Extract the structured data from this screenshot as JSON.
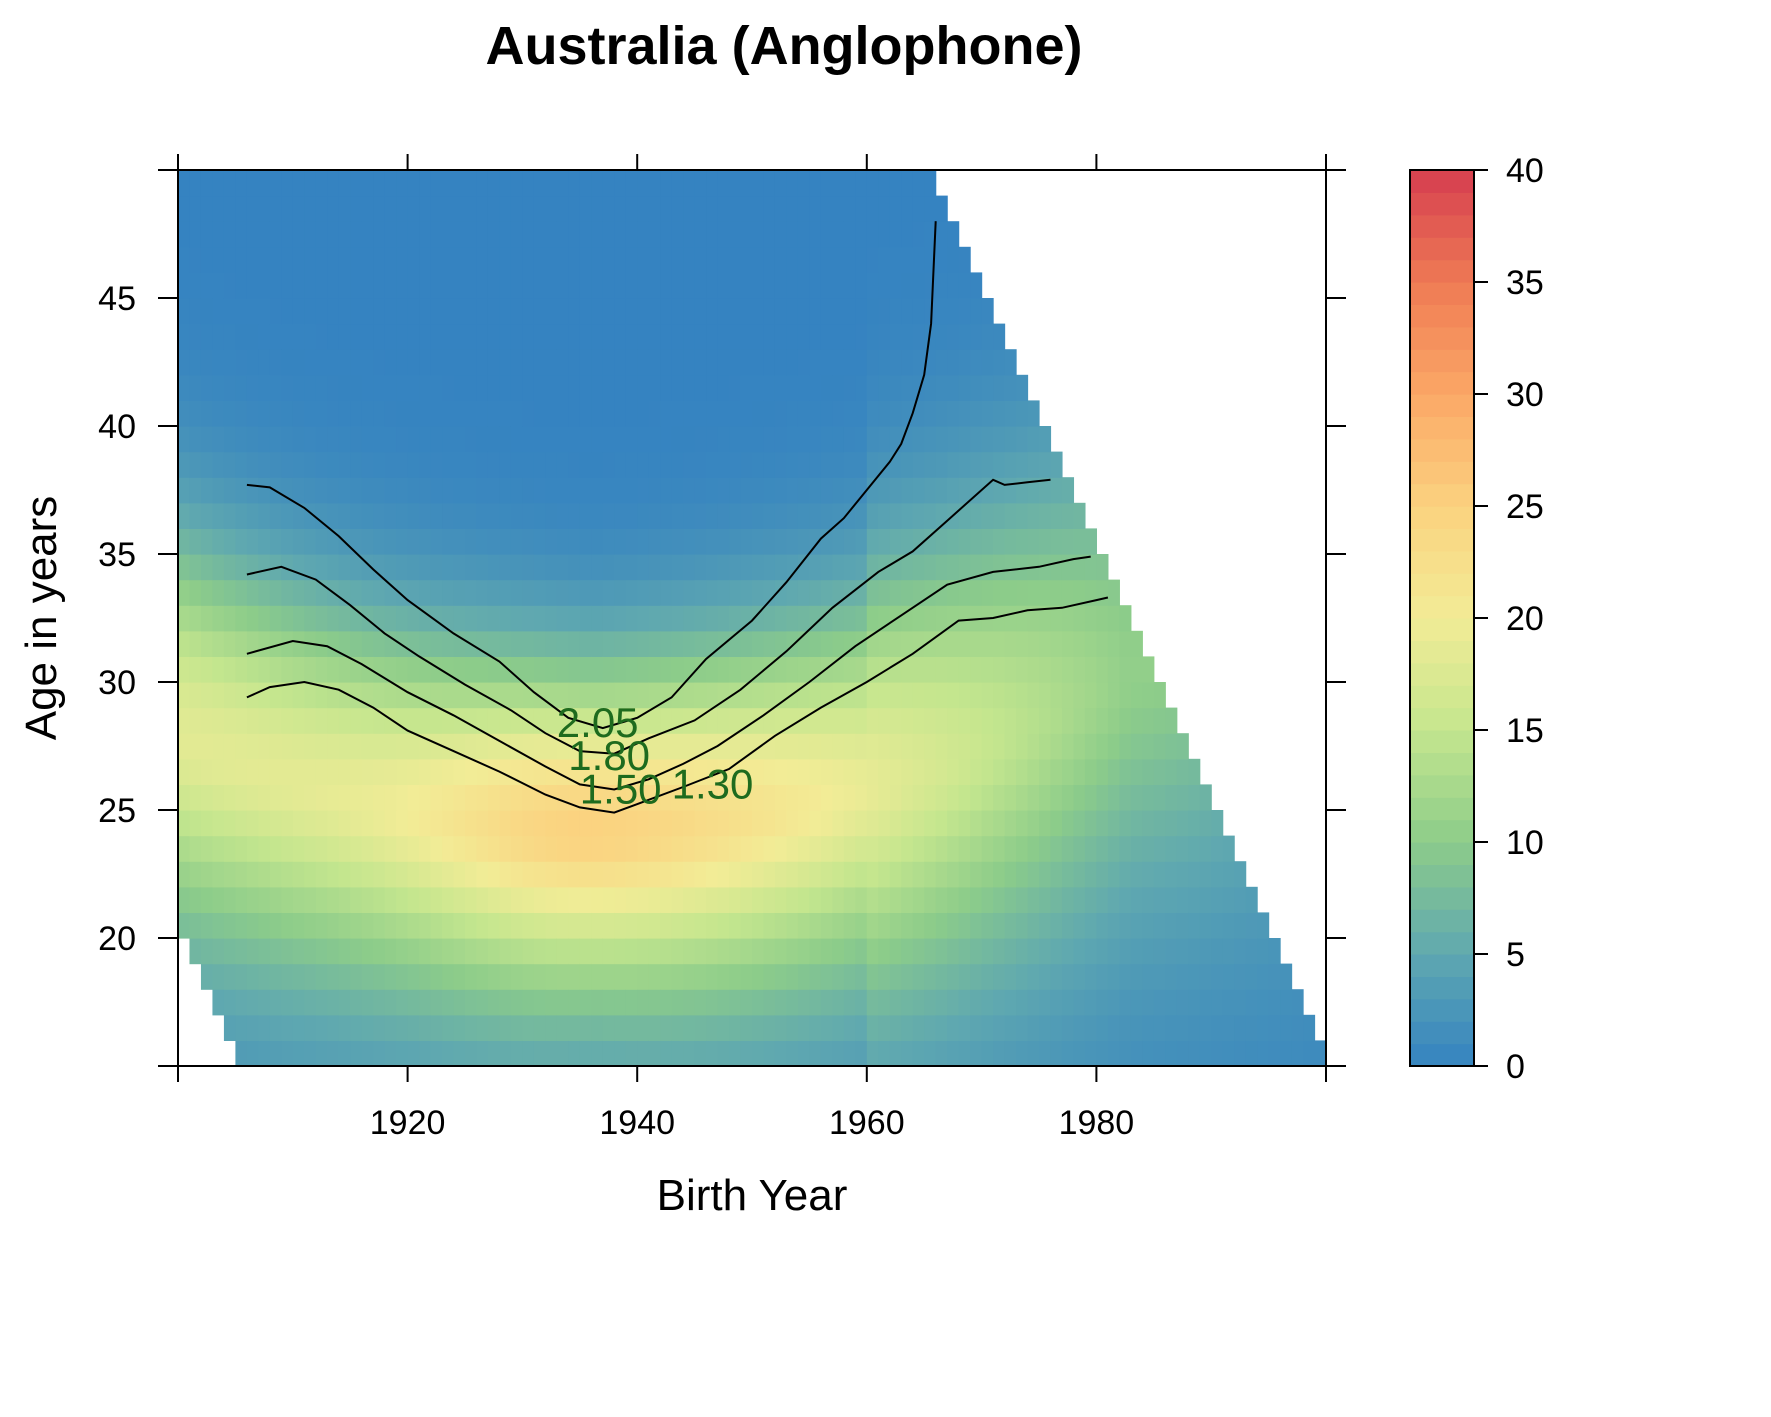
{
  "chart_data": {
    "type": "heatmap",
    "title": "Australia (Anglophone)",
    "xlabel": "Birth Year",
    "ylabel": "Age in years",
    "xlim": [
      1900,
      2000
    ],
    "ylim": [
      15,
      50
    ],
    "x_ticks": [
      1920,
      1940,
      1960,
      1980
    ],
    "y_ticks": [
      20,
      25,
      30,
      35,
      40,
      45
    ],
    "colorbar": {
      "range": [
        0,
        40
      ],
      "ticks": [
        0,
        5,
        10,
        15,
        20,
        25,
        30,
        35,
        40
      ],
      "colors": [
        "#3583c1",
        "#5fa8b0",
        "#8ccc8a",
        "#c4e68e",
        "#f2ec96",
        "#fbd27f",
        "#fba866",
        "#ef7a54",
        "#d53e4f"
      ]
    },
    "heat_peak": {
      "x": 1936,
      "y": 24,
      "value": 25
    },
    "contours": [
      {
        "label": "2.05",
        "points": [
          [
            1906,
            37.7
          ],
          [
            1908,
            37.6
          ],
          [
            1911,
            36.8
          ],
          [
            1914,
            35.7
          ],
          [
            1917,
            34.4
          ],
          [
            1920,
            33.2
          ],
          [
            1924,
            31.9
          ],
          [
            1928,
            30.8
          ],
          [
            1931,
            29.6
          ],
          [
            1934,
            28.6
          ],
          [
            1937,
            28.2
          ],
          [
            1940,
            28.6
          ],
          [
            1943,
            29.4
          ],
          [
            1946,
            30.9
          ],
          [
            1950,
            32.4
          ],
          [
            1953,
            33.9
          ],
          [
            1956,
            35.6
          ],
          [
            1958,
            36.4
          ],
          [
            1960,
            37.5
          ],
          [
            1962,
            38.6
          ],
          [
            1963,
            39.3
          ],
          [
            1964,
            40.5
          ],
          [
            1965,
            42.0
          ],
          [
            1965.6,
            44.0
          ],
          [
            1966,
            48.0
          ]
        ],
        "label_pos": [
          1933,
          28.4
        ]
      },
      {
        "label": "1.80",
        "points": [
          [
            1906,
            34.2
          ],
          [
            1909,
            34.5
          ],
          [
            1912,
            34.0
          ],
          [
            1915,
            33.0
          ],
          [
            1918,
            31.9
          ],
          [
            1921,
            31.0
          ],
          [
            1925,
            29.9
          ],
          [
            1929,
            28.9
          ],
          [
            1932,
            28.0
          ],
          [
            1935,
            27.3
          ],
          [
            1938,
            27.2
          ],
          [
            1941,
            27.8
          ],
          [
            1945,
            28.5
          ],
          [
            1949,
            29.7
          ],
          [
            1953,
            31.2
          ],
          [
            1957,
            32.9
          ],
          [
            1961,
            34.3
          ],
          [
            1964,
            35.1
          ],
          [
            1967,
            36.3
          ],
          [
            1971,
            37.9
          ],
          [
            1972,
            37.7
          ],
          [
            1974,
            37.8
          ],
          [
            1976,
            37.9
          ]
        ],
        "label_pos": [
          1934,
          27.1
        ]
      },
      {
        "label": "1.50",
        "points": [
          [
            1906,
            31.1
          ],
          [
            1910,
            31.6
          ],
          [
            1913,
            31.4
          ],
          [
            1916,
            30.7
          ],
          [
            1920,
            29.6
          ],
          [
            1924,
            28.7
          ],
          [
            1928,
            27.7
          ],
          [
            1932,
            26.7
          ],
          [
            1935,
            26.0
          ],
          [
            1938,
            25.8
          ],
          [
            1941,
            26.2
          ],
          [
            1944,
            26.8
          ],
          [
            1947,
            27.5
          ],
          [
            1951,
            28.7
          ],
          [
            1955,
            30.0
          ],
          [
            1959,
            31.4
          ],
          [
            1963,
            32.6
          ],
          [
            1967,
            33.8
          ],
          [
            1971,
            34.3
          ],
          [
            1975,
            34.5
          ],
          [
            1978,
            34.8
          ],
          [
            1979.5,
            34.9
          ]
        ],
        "label_pos": [
          1935,
          25.8
        ]
      },
      {
        "label": "1.30",
        "points": [
          [
            1906,
            29.4
          ],
          [
            1908,
            29.8
          ],
          [
            1911,
            30.0
          ],
          [
            1914,
            29.7
          ],
          [
            1917,
            29.0
          ],
          [
            1920,
            28.1
          ],
          [
            1924,
            27.3
          ],
          [
            1928,
            26.5
          ],
          [
            1932,
            25.6
          ],
          [
            1935,
            25.1
          ],
          [
            1938,
            24.9
          ],
          [
            1941,
            25.4
          ],
          [
            1944,
            25.9
          ],
          [
            1948,
            26.6
          ],
          [
            1952,
            27.9
          ],
          [
            1956,
            29.0
          ],
          [
            1960,
            30.0
          ],
          [
            1964,
            31.1
          ],
          [
            1968,
            32.4
          ],
          [
            1971,
            32.5
          ],
          [
            1974,
            32.8
          ],
          [
            1977,
            32.9
          ],
          [
            1980,
            33.2
          ],
          [
            1981,
            33.3
          ]
        ],
        "label_pos": [
          1943,
          26.0
        ]
      }
    ]
  }
}
